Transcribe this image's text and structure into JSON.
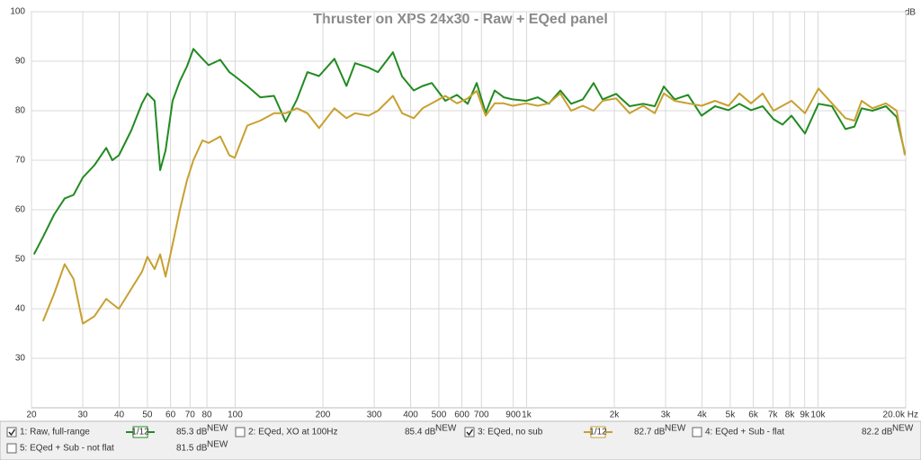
{
  "chart_data": {
    "type": "line",
    "title": "Thruster on XPS 24x30 - Raw + EQed panel",
    "y_label": "dB",
    "log_x": true,
    "grid": true,
    "xlim": [
      20,
      20000
    ],
    "ylim": [
      20,
      100
    ],
    "xticks": [
      20,
      30,
      40,
      50,
      60,
      70,
      80,
      100,
      200,
      300,
      400,
      500,
      600,
      700,
      900,
      {
        "value": 1000,
        "label": "1k"
      },
      {
        "value": 2000,
        "label": "2k"
      },
      {
        "value": 3000,
        "label": "3k"
      },
      {
        "value": 4000,
        "label": "4k"
      },
      {
        "value": 5000,
        "label": "5k"
      },
      {
        "value": 6000,
        "label": "6k"
      },
      {
        "value": 7000,
        "label": "7k"
      },
      {
        "value": 8000,
        "label": "8k"
      },
      {
        "value": 9000,
        "label": "9k"
      },
      {
        "value": 10000,
        "label": "10k"
      },
      {
        "value": 20000,
        "label": "20.0k Hz"
      }
    ],
    "yticks": [
      30,
      40,
      50,
      60,
      70,
      80,
      90,
      100
    ],
    "x": [
      20.4,
      21.9,
      23.9,
      26.0,
      27.9,
      30.0,
      32.9,
      36.1,
      37.9,
      39.9,
      44.0,
      47.9,
      50.0,
      52.9,
      55.3,
      57.7,
      61.0,
      64.6,
      68.4,
      71.9,
      77.2,
      81.1,
      88.9,
      95.5,
      99.7,
      110,
      122,
      136,
      149,
      163,
      177,
      194,
      219,
      241,
      258,
      287,
      309,
      348,
      374,
      410,
      440,
      473,
      526,
      577,
      628,
      674,
      724,
      777,
      835,
      896,
      997,
      1093,
      1191,
      1306,
      1422,
      1560,
      1698,
      1824,
      2029,
      2257,
      2511,
      2754,
      2958,
      3221,
      3582,
      3985,
      4433,
      4931,
      5370,
      5890,
      6460,
      7036,
      7554,
      8110,
      9022,
      10038,
      11166,
      12423,
      13340,
      14121,
      15379,
      17104,
      18626,
      19860
    ],
    "series": [
      {
        "name": "1: Raw, full-range",
        "color": "#228b22",
        "smoothing": "1/12",
        "level": "85.3 dB",
        "values": [
          51,
          54.5,
          59,
          62.3,
          63,
          66.5,
          69,
          72.5,
          70,
          71,
          76,
          81.5,
          83.5,
          82,
          68,
          72,
          82,
          86,
          89,
          92.5,
          90.5,
          89.2,
          90.3,
          87.8,
          87,
          85,
          82.7,
          83,
          77.8,
          82.3,
          87.8,
          87,
          90.5,
          85,
          89.6,
          88.7,
          87.8,
          91.8,
          86.9,
          84.1,
          85,
          85.6,
          82,
          83.2,
          81.4,
          85.6,
          79.6,
          84.1,
          82.7,
          82.3,
          82,
          82.7,
          81.4,
          84.1,
          81.4,
          82.3,
          85.6,
          82.3,
          83.4,
          80.9,
          81.4,
          80.9,
          84.9,
          82.3,
          83.2,
          79,
          80.9,
          80.1,
          81.4,
          80.1,
          80.9,
          78.3,
          77.2,
          79,
          75.4,
          81.4,
          80.9,
          76.3,
          76.8,
          80.5,
          80,
          80.9,
          78.7,
          71.4
        ]
      },
      {
        "name": "3: EQed, no sub",
        "color": "#c8a030",
        "smoothing": "1/12",
        "level": "82.7 dB",
        "values": [
          null,
          37.5,
          43,
          49,
          46,
          37,
          38.5,
          42,
          41,
          40,
          44,
          47.5,
          50.5,
          48,
          51,
          46.5,
          53,
          60,
          66,
          70,
          74,
          73.5,
          74.8,
          71,
          70.5,
          77,
          78,
          79.5,
          79.5,
          80.5,
          79.5,
          76.5,
          80.5,
          78.5,
          79.5,
          79,
          80,
          83,
          79.5,
          78.5,
          80.5,
          81.5,
          83,
          81.5,
          82.5,
          84,
          79,
          81.5,
          81.5,
          81,
          81.5,
          81,
          81.5,
          83.5,
          80,
          81,
          80,
          82,
          82.5,
          79.5,
          81,
          79.5,
          83.5,
          82,
          81.5,
          81,
          82,
          81,
          83.5,
          81.5,
          83.5,
          80,
          81,
          82,
          79.5,
          84.5,
          81.5,
          78.5,
          78,
          82,
          80.5,
          81.5,
          80,
          71
        ]
      }
    ]
  },
  "legend_panel": {
    "new_tag": "NEW",
    "hidden_series": [
      {
        "name": "2: EQed, XO at 100Hz",
        "color": "#3a7fb5",
        "level": "85.4 dB"
      },
      {
        "name": "4: EQed + Sub -  flat",
        "color": "#1f8f8f",
        "level": "82.2 dB"
      },
      {
        "name": "5: EQed + Sub - not flat",
        "color": "#c020c0",
        "level": "81.5 dB"
      }
    ]
  }
}
